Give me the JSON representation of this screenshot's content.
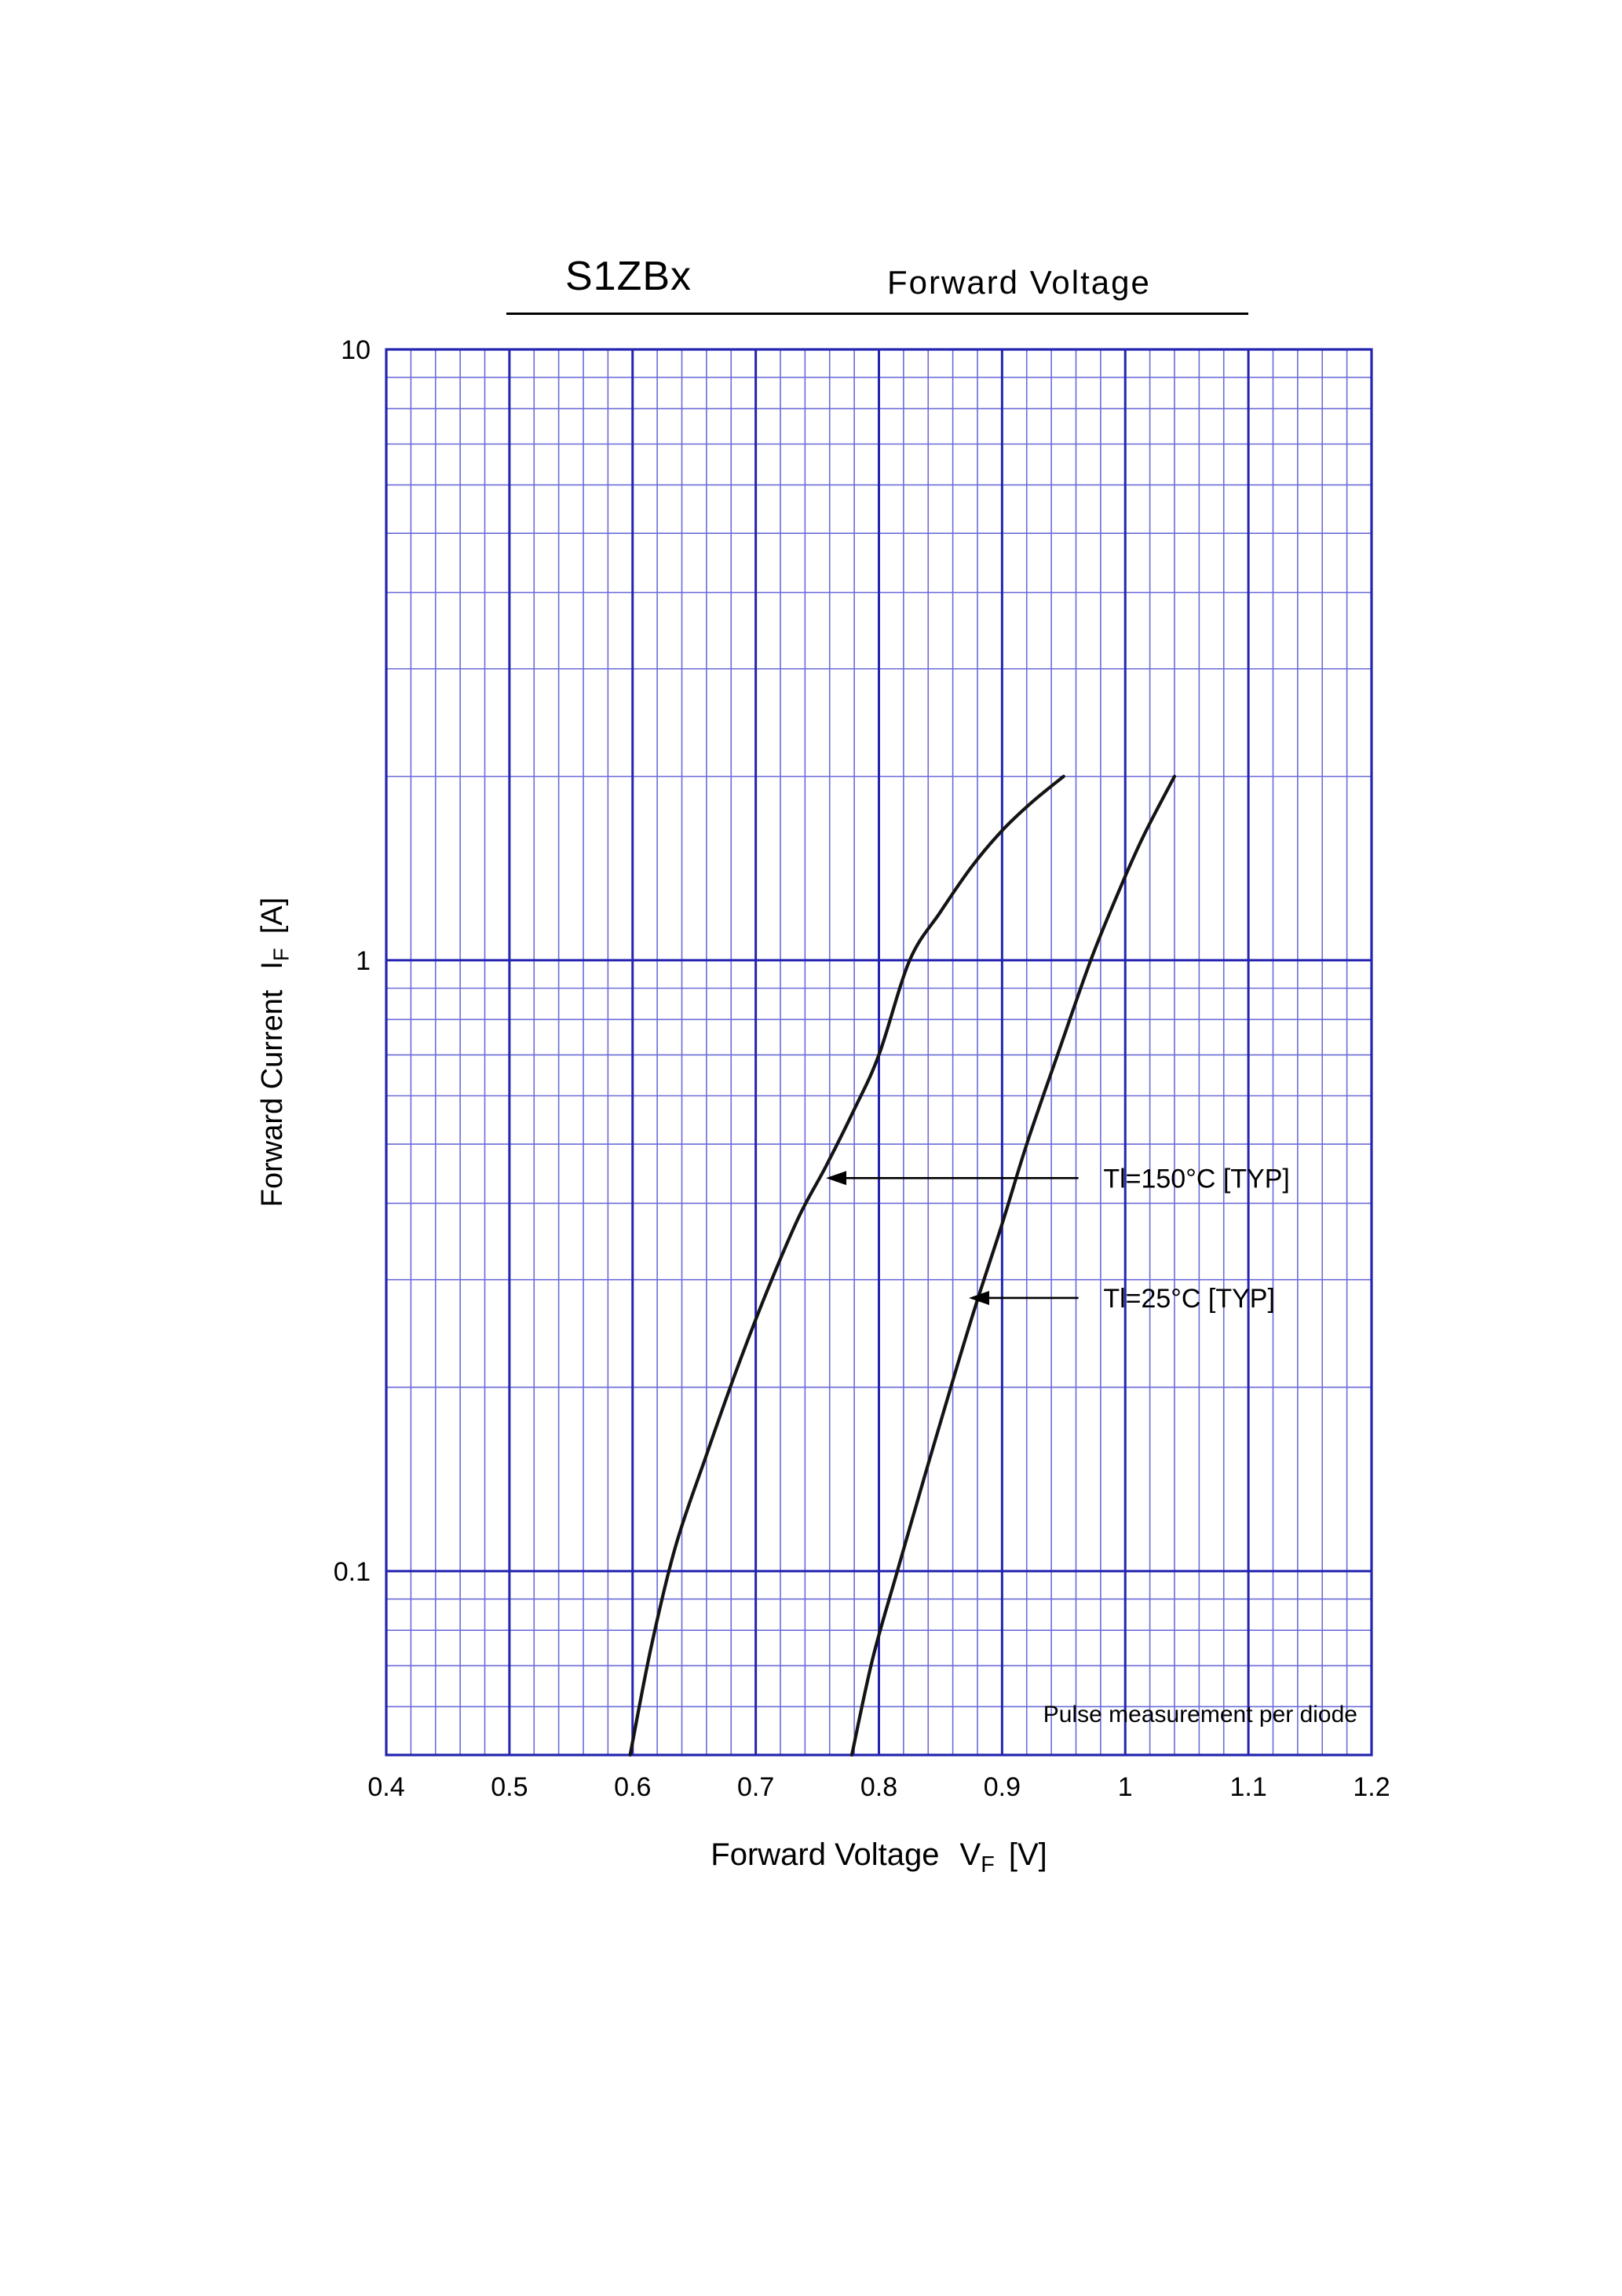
{
  "header": {
    "part_number": "S1ZBx",
    "chart_name": "Forward  Voltage"
  },
  "labels": {
    "y_text": "Forward Current",
    "y_symbol": "I",
    "y_sub": "F",
    "y_unit": "[A]",
    "x_text": "Forward Voltage",
    "x_symbol": "V",
    "x_sub": "F",
    "x_unit": "[V]"
  },
  "chart_data": {
    "type": "line",
    "title": "S1ZBx  Forward Voltage",
    "xlabel": "Forward Voltage VF [V]",
    "ylabel": "Forward Current IF [A]",
    "x_axis": {
      "min": 0.4,
      "max": 1.2,
      "major_step": 0.1,
      "minor_step": 0.02,
      "tick_values": [
        0.4,
        0.5,
        0.6,
        0.7,
        0.8,
        0.9,
        1.0,
        1.1,
        1.2
      ],
      "tick_labels": [
        "0.4",
        "0.5",
        "0.6",
        "0.7",
        "0.8",
        "0.9",
        "1",
        "1.1",
        "1.2"
      ]
    },
    "y_axis": {
      "scale": "log",
      "min": 0.05,
      "max": 10,
      "tick_values": [
        10,
        1,
        0.1
      ],
      "tick_labels": [
        "10",
        "1",
        "0.1"
      ]
    },
    "grid": "on",
    "series": [
      {
        "name": "Tl=150°C [TYP]",
        "points": [
          [
            0.598,
            0.05
          ],
          [
            0.615,
            0.075
          ],
          [
            0.635,
            0.11
          ],
          [
            0.66,
            0.155
          ],
          [
            0.685,
            0.215
          ],
          [
            0.71,
            0.29
          ],
          [
            0.735,
            0.38
          ],
          [
            0.757,
            0.46
          ],
          [
            0.78,
            0.57
          ],
          [
            0.8,
            0.7
          ],
          [
            0.825,
            1.0
          ],
          [
            0.85,
            1.2
          ],
          [
            0.875,
            1.42
          ],
          [
            0.9,
            1.63
          ],
          [
            0.925,
            1.82
          ],
          [
            0.95,
            2.0
          ]
        ]
      },
      {
        "name": "Tl=25°C [TYP]",
        "points": [
          [
            0.778,
            0.05
          ],
          [
            0.795,
            0.072
          ],
          [
            0.815,
            0.1
          ],
          [
            0.838,
            0.145
          ],
          [
            0.86,
            0.205
          ],
          [
            0.878,
            0.27
          ],
          [
            0.9,
            0.37
          ],
          [
            0.92,
            0.5
          ],
          [
            0.945,
            0.7
          ],
          [
            0.972,
            1.0
          ],
          [
            0.995,
            1.3
          ],
          [
            1.015,
            1.6
          ],
          [
            1.04,
            2.0
          ]
        ]
      }
    ],
    "annotations": [
      {
        "text": "Tl=150°C [TYP]",
        "tip_v": 0.757,
        "tip_i": 0.44,
        "tail_v": 0.962,
        "text_v": 0.972
      },
      {
        "text": "Tl=25°C [TYP]",
        "tip_v": 0.873,
        "tip_i": 0.28,
        "tail_v": 0.962,
        "text_v": 0.972
      }
    ],
    "note": "Pulse  measurement  per  diode",
    "colors": {
      "grid_minor": "#6b6bd8",
      "grid_major": "#2424b0",
      "frame": "#2424b0",
      "curve": "#141414",
      "text": "#000000"
    }
  }
}
